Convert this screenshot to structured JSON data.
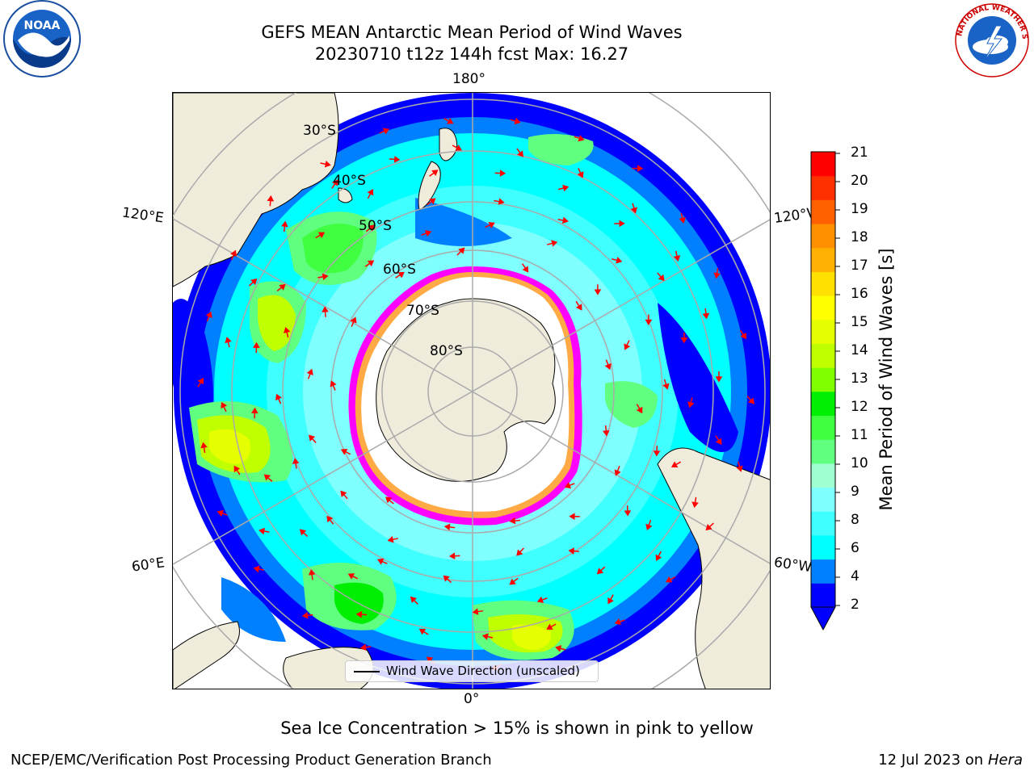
{
  "title": {
    "line1": "GEFS MEAN Antarctic Mean Period of Wind Waves",
    "line2": "20230710 t12z 144h fcst   Max: 16.27"
  },
  "logos": {
    "left": "noaa-logo",
    "right": "nws-logo",
    "left_text": "NOAA",
    "right_text": "NATIONAL WEATHER SERVICE"
  },
  "map": {
    "projection": "south-polar-stereographic",
    "lon_labels": {
      "top": "180°",
      "bottom": "0°",
      "upper_left": "120°E",
      "upper_right": "120°W",
      "lower_left": "60°E",
      "lower_right": "60°W"
    },
    "lat_labels": [
      "30°S",
      "40°S",
      "50°S",
      "60°S",
      "70°S",
      "80°S"
    ],
    "legend": "Wind Wave Direction (unscaled)",
    "arrow_color": "#ff0000",
    "land_color": "#efecdc",
    "ice_colors": [
      "#ff00ff",
      "#ff66cc",
      "#ffaa44",
      "#ffff66"
    ]
  },
  "colorbar": {
    "label": "Mean Period of Wind Waves [s]",
    "ticks": [
      "21",
      "20",
      "19",
      "18",
      "17",
      "16",
      "15",
      "14",
      "13",
      "12",
      "11",
      "10",
      "9",
      "8",
      "6",
      "4",
      "2"
    ],
    "colors": [
      "#0000ff",
      "#0080ff",
      "#00ffff",
      "#40ffff",
      "#80ffff",
      "#a0ffd0",
      "#60ff80",
      "#40ff40",
      "#00ee00",
      "#80ff00",
      "#c0ff00",
      "#e6ff00",
      "#ffff00",
      "#ffe000",
      "#ffb000",
      "#ff9000",
      "#ff6000",
      "#ff3000",
      "#ff0000"
    ]
  },
  "subcaption": "Sea Ice Concentration > 15% is shown in pink to yellow",
  "footer": {
    "left": "NCEP/EMC/Verification Post Processing Product Generation Branch",
    "right_date": "12 Jul 2023 on ",
    "right_machine": "Hera"
  }
}
